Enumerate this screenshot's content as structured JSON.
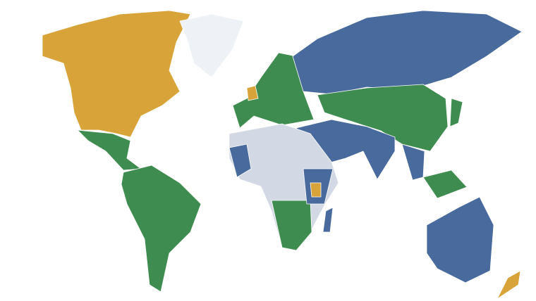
{
  "map": {
    "type": "choropleth-world",
    "colors": {
      "orange": "#D8A43A",
      "blue": "#486A9C",
      "green": "#3F8C50",
      "gray": "#D2D9E4",
      "nodata": "#EEF1F5",
      "background": "#FFFFFF",
      "border": "#FFFFFF"
    },
    "regions": [
      {
        "id": "north-america",
        "category": "orange"
      },
      {
        "id": "greenland",
        "category": "nodata"
      },
      {
        "id": "mexico-central-america",
        "category": "green"
      },
      {
        "id": "south-america",
        "category": "green"
      },
      {
        "id": "europe",
        "category": "green"
      },
      {
        "id": "united-kingdom",
        "category": "orange"
      },
      {
        "id": "russia",
        "category": "blue"
      },
      {
        "id": "central-asia-china",
        "category": "green"
      },
      {
        "id": "japan",
        "category": "green"
      },
      {
        "id": "middle-east-south-asia",
        "category": "blue"
      },
      {
        "id": "southeast-asia",
        "category": "blue"
      },
      {
        "id": "north-africa",
        "category": "gray"
      },
      {
        "id": "west-africa",
        "category": "blue"
      },
      {
        "id": "southern-africa",
        "category": "green"
      },
      {
        "id": "east-africa",
        "category": "blue"
      },
      {
        "id": "kenya",
        "category": "orange"
      },
      {
        "id": "madagascar",
        "category": "blue"
      },
      {
        "id": "indonesia",
        "category": "green"
      },
      {
        "id": "australia",
        "category": "blue"
      },
      {
        "id": "new-zealand",
        "category": "orange"
      }
    ]
  }
}
